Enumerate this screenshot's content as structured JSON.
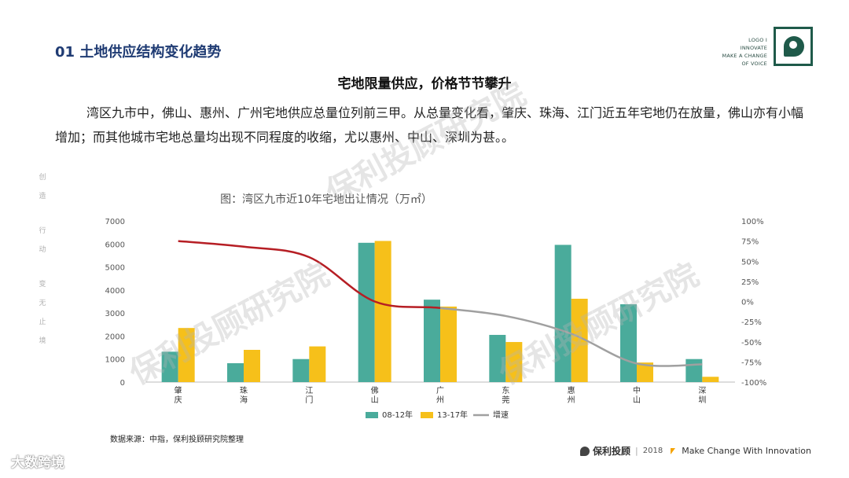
{
  "header": {
    "section_title": "01 土地供应结构变化趋势",
    "logo_tagline": [
      "LOGO I",
      "INNOVATE",
      "MAKE A CHANGE",
      "OF VOICE"
    ]
  },
  "subtitle": "宅地限量供应，价格节节攀升",
  "paragraph": "湾区九市中，佛山、惠州、广州宅地供应总量位列前三甲。从总量变化看，肇庆、珠海、江门近五年宅地仍在放量，佛山亦有小幅增加；而其他城市宅地总量均出现不同程度的收缩，尤以惠州、中山、深圳为甚。。",
  "side_text": [
    "创",
    "造",
    "行",
    "动",
    "变",
    "无",
    "止",
    "境"
  ],
  "watermark": "保利投顾研究院",
  "source": "数据来源：中指，保利投顾研究院整理",
  "footer": {
    "brand": "保利投顾",
    "year": "2018",
    "slogan": "Make Change With Innovation",
    "left_logo": "大数跨境"
  },
  "colors": {
    "series1": "#4aab9b",
    "series2": "#f6c01a",
    "line_red": "#b61e24",
    "line_gray": "#a0a0a0",
    "title_blue": "#1f3b73",
    "logo_green": "#1f5a4a"
  },
  "chart_data": {
    "type": "bar",
    "title": "图：湾区九市近10年宅地出让情况（万㎡）",
    "categories": [
      "肇庆",
      "珠海",
      "江门",
      "佛山",
      "广州",
      "东莞",
      "惠州",
      "中山",
      "深圳"
    ],
    "series": [
      {
        "name": "08-12年",
        "type": "bar",
        "axis": "left",
        "values": [
          1320,
          820,
          1000,
          6050,
          3580,
          2050,
          5960,
          3380,
          1000
        ]
      },
      {
        "name": "13-17年",
        "type": "bar",
        "axis": "left",
        "values": [
          2350,
          1400,
          1550,
          6130,
          3280,
          1740,
          3620,
          850,
          230
        ]
      },
      {
        "name": "增速",
        "type": "line",
        "axis": "right",
        "values": [
          75,
          68,
          55,
          0,
          -8,
          -18,
          -40,
          -77,
          -78
        ]
      }
    ],
    "y_left": {
      "range": [
        0,
        7000
      ],
      "ticks": [
        0,
        1000,
        2000,
        3000,
        4000,
        5000,
        6000,
        7000
      ]
    },
    "y_right": {
      "range": [
        -100,
        100
      ],
      "ticks": [
        "-100%",
        "-75%",
        "-50%",
        "-25%",
        "0%",
        "25%",
        "50%",
        "75%",
        "100%"
      ]
    },
    "legend_position": "bottom",
    "grid": false
  }
}
